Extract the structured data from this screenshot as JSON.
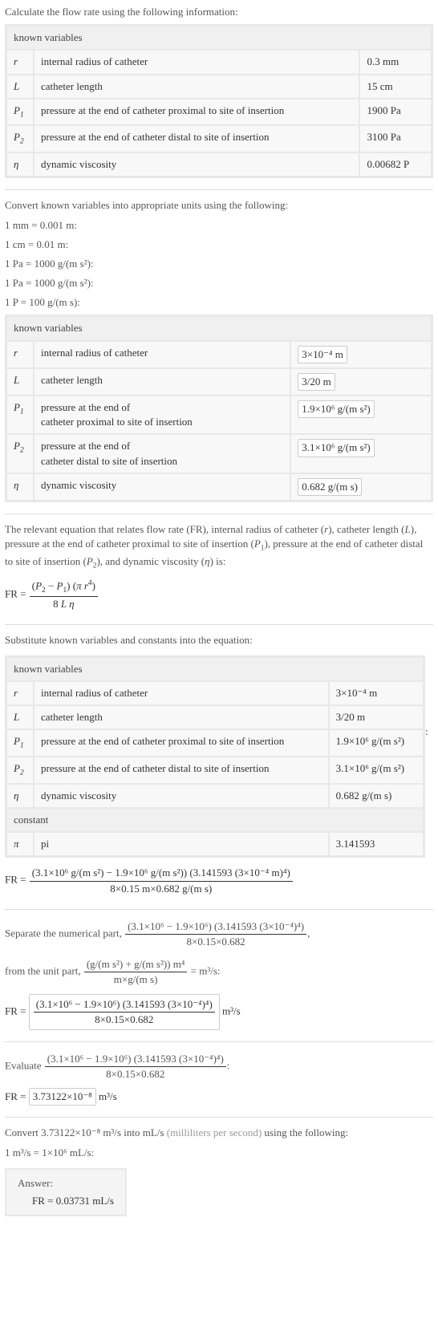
{
  "intro": "Calculate the flow rate using the following information:",
  "tbl1": {
    "hdr": "known variables",
    "rows": [
      {
        "sym": "r",
        "desc": "internal radius of catheter",
        "val": "0.3 mm"
      },
      {
        "sym": "L",
        "desc": "catheter length",
        "val": "15 cm"
      },
      {
        "sym": "P",
        "sub": "1",
        "desc": "pressure at the end of catheter proximal to site of insertion",
        "val": "1900 Pa"
      },
      {
        "sym": "P",
        "sub": "2",
        "desc": "pressure at the end of catheter distal to site of insertion",
        "val": "3100 Pa"
      },
      {
        "sym": "η",
        "desc": "dynamic viscosity",
        "val": "0.00682 P"
      }
    ]
  },
  "convIntro": "Convert known variables into appropriate units using the following:",
  "convs": [
    "1 mm = 0.001 m:",
    "1 cm = 0.01 m:",
    "1 Pa = 1000 g/(m s²):",
    "1 Pa = 1000 g/(m s²):",
    "1 P = 100 g/(m s):"
  ],
  "tbl2": {
    "hdr": "known variables",
    "rows": [
      {
        "sym": "r",
        "desc": "internal radius of catheter",
        "val": "3×10⁻⁴ m",
        "box": true
      },
      {
        "sym": "L",
        "desc": "catheter length",
        "val": "3/20 m",
        "box": true
      },
      {
        "sym": "P",
        "sub": "1",
        "desc": "pressure at the end of",
        "desc2": "catheter proximal to site of insertion",
        "val": "1.9×10⁶ g/(m s²)",
        "box": true
      },
      {
        "sym": "P",
        "sub": "2",
        "desc": "pressure at the end of",
        "desc2": "catheter distal to site of insertion",
        "val": "3.1×10⁶ g/(m s²)",
        "box": true
      },
      {
        "sym": "η",
        "desc": "dynamic viscosity",
        "val": "0.682 g/(m s)",
        "box": true
      }
    ]
  },
  "relIntro1": "The relevant equation that relates flow rate (FR), internal radius of catheter (",
  "relIntro2": "), catheter length (",
  "relIntro3": "), pressure at the end of catheter proximal to site of insertion (",
  "relIntro4": "), pressure at the end of catheter distal to site of insertion (",
  "relIntro5": "), and dynamic viscosity (",
  "relIntro6": ") is:",
  "mainEq": {
    "lhs": "FR = ",
    "num": "(P₂ − P₁) (π r⁴)",
    "den": "8 L η"
  },
  "subIntro": "Substitute known variables and constants into the equation:",
  "tbl3": {
    "hdr1": "known variables",
    "rows": [
      {
        "sym": "r",
        "desc": "internal radius of catheter",
        "val": "3×10⁻⁴ m"
      },
      {
        "sym": "L",
        "desc": "catheter length",
        "val": "3/20 m"
      },
      {
        "sym": "P",
        "sub": "1",
        "desc": "pressure at the end of catheter proximal to site of insertion",
        "val": "1.9×10⁶ g/(m s²)"
      },
      {
        "sym": "P",
        "sub": "2",
        "desc": "pressure at the end of catheter distal to site of insertion",
        "val": "3.1×10⁶ g/(m s²)"
      },
      {
        "sym": "η",
        "desc": "dynamic viscosity",
        "val": "0.682 g/(m s)"
      }
    ],
    "hdr2": "constant",
    "crows": [
      {
        "sym": "π",
        "desc": "pi",
        "val": "3.141593"
      }
    ]
  },
  "subEq": {
    "lhs": "FR = ",
    "num": "(3.1×10⁶ g/(m s²) − 1.9×10⁶ g/(m s²)) (3.141593 (3×10⁻⁴ m)⁴)",
    "den": "8×0.15 m×0.682 g/(m s)"
  },
  "sepIntro1": "Separate the numerical part, ",
  "sepFrac1": {
    "num": "(3.1×10⁶ − 1.9×10⁶) (3.141593 (3×10⁻⁴)⁴)",
    "den": "8×0.15×0.682"
  },
  "sepIntro2": ",",
  "sepLine2a": "from the unit part, ",
  "sepFrac2": {
    "num": "(g/(m s²) + g/(m s²)) m⁴",
    "den": "m×g/(m s)"
  },
  "sepLine2b": " = m³/s:",
  "sepEq": {
    "lhs": "FR = ",
    "num": "(3.1×10⁶ − 1.9×10⁶) (3.141593 (3×10⁻⁴)⁴)",
    "den": "8×0.15×0.682",
    "unit": " m³/s",
    "boxed": true
  },
  "evalIntro": "Evaluate ",
  "evalFrac": {
    "num": "(3.1×10⁶ − 1.9×10⁶) (3.141593 (3×10⁻⁴)⁴)",
    "den": "8×0.15×0.682"
  },
  "evalEnd": ":",
  "evalEq": {
    "lhs": "FR = ",
    "val": "3.73122×10⁻⁸",
    "unit": " m³/s"
  },
  "finalIntro1": "Convert 3.73122×10⁻⁸ m³/s into mL/s ",
  "finalGray": "(milliliters per second)",
  "finalIntro2": " using the following:",
  "finalConv": "1 m³/s = 1×10⁶ mL/s:",
  "answerLbl": "Answer:",
  "answerVal": "FR = 0.03731 mL/s"
}
